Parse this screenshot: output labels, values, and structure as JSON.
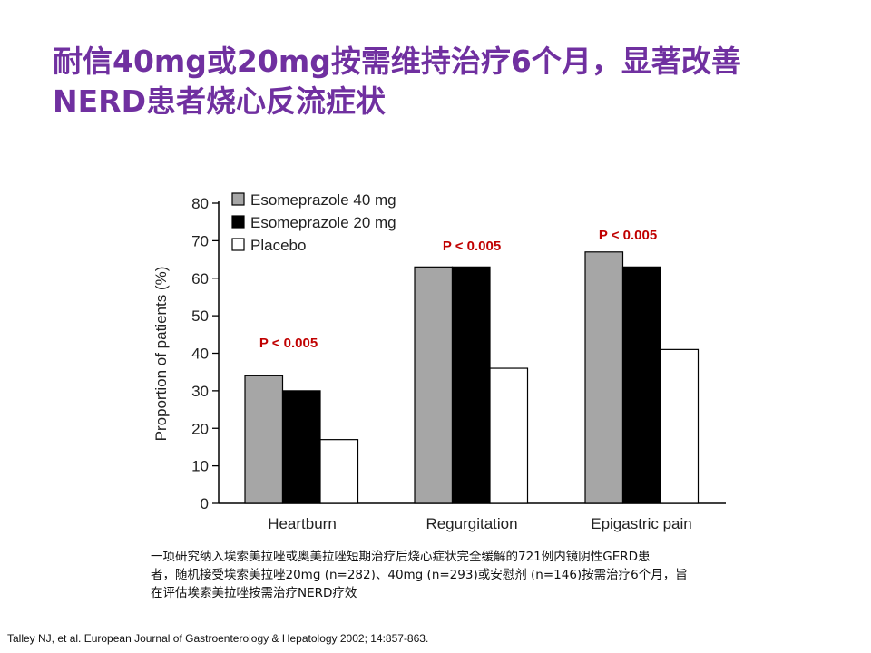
{
  "slide": {
    "title_lines": [
      "耐信40mg或20mg按需维持治疗6个月，显著改善",
      "NERD患者烧心反流症状"
    ],
    "caption_lines": [
      "一项研究纳入埃索美拉唑或奥美拉唑短期治疗后烧心症状完全缓解的721例内镜阴性GERD患",
      "者，随机接受埃索美拉唑20mg (n=282)、40mg (n=293)或安慰剂 (n=146)按需治疗6个月，旨",
      "在评估埃索美拉唑按需治疗NERD疗效"
    ],
    "reference": "Talley NJ, et al. European Journal of Gastroenterology & Hepatology 2002; 14:857-863."
  },
  "colors": {
    "title": "#7030a0",
    "annotation": "#c00000",
    "series": [
      "#a6a6a6",
      "#000000",
      "#ffffff"
    ]
  },
  "chart_data": {
    "type": "bar",
    "categories": [
      "Heartburn",
      "Regurgitation",
      "Epigastric pain"
    ],
    "series": [
      {
        "name": "Esomeprazole 40 mg",
        "values": [
          34,
          63,
          67
        ]
      },
      {
        "name": "Esomeprazole 20 mg",
        "values": [
          30,
          63,
          63
        ]
      },
      {
        "name": "Placebo",
        "values": [
          17,
          36,
          41
        ]
      }
    ],
    "ylabel": "Proportion of patients (%)",
    "xlabel": "",
    "ylim": [
      0,
      80
    ],
    "yticks": [
      0,
      10,
      20,
      30,
      40,
      50,
      60,
      70,
      80
    ],
    "legend_position": "top-left",
    "grid": false,
    "annotations": [
      "P < 0.005",
      "P < 0.005",
      "P < 0.005"
    ]
  }
}
